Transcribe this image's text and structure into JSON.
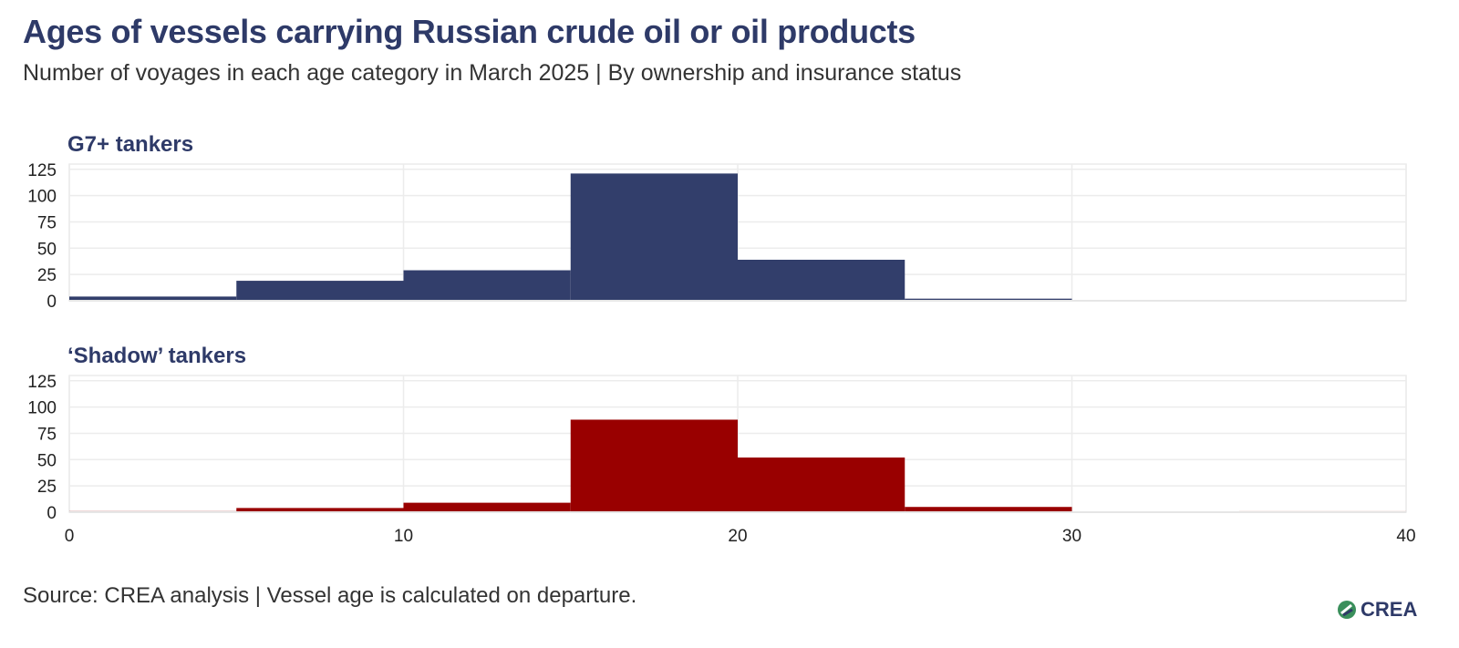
{
  "header": {
    "title": "Ages of vessels carrying Russian crude oil or oil products",
    "subtitle": "Number of voyages in each age category in March 2025 | By ownership and insurance status"
  },
  "footer": {
    "source": "Source: CREA analysis | Vessel age is calculated on departure.",
    "logo_text": "CREA"
  },
  "chart_data": {
    "type": "bar",
    "bins": [
      [
        0,
        5
      ],
      [
        5,
        10
      ],
      [
        10,
        15
      ],
      [
        15,
        20
      ],
      [
        20,
        25
      ],
      [
        25,
        30
      ],
      [
        30,
        35
      ],
      [
        35,
        40
      ]
    ],
    "x_ticks": [
      0,
      10,
      20,
      30,
      40
    ],
    "y_ticks": [
      0,
      25,
      50,
      75,
      100,
      125
    ],
    "xlim": [
      0,
      40
    ],
    "ylim": [
      0,
      130
    ],
    "grid": true,
    "series": [
      {
        "name": "G7+ tankers",
        "color": "#323e6b",
        "values": [
          4,
          19,
          29,
          121,
          39,
          2,
          0,
          0
        ]
      },
      {
        "name": "‘Shadow’ tankers",
        "color": "#990000",
        "values": [
          1,
          4,
          9,
          88,
          52,
          5,
          0,
          1
        ]
      }
    ]
  }
}
